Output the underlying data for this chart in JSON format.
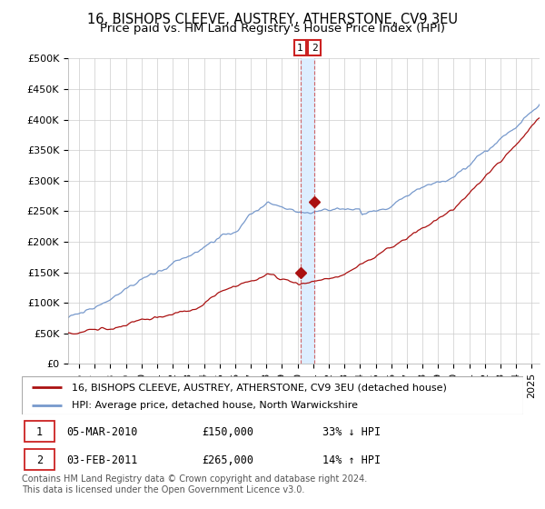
{
  "title": "16, BISHOPS CLEEVE, AUSTREY, ATHERSTONE, CV9 3EU",
  "subtitle": "Price paid vs. HM Land Registry's House Price Index (HPI)",
  "ylabel_ticks": [
    "£0",
    "£50K",
    "£100K",
    "£150K",
    "£200K",
    "£250K",
    "£300K",
    "£350K",
    "£400K",
    "£450K",
    "£500K"
  ],
  "ytick_vals": [
    0,
    50000,
    100000,
    150000,
    200000,
    250000,
    300000,
    350000,
    400000,
    450000,
    500000
  ],
  "ylim": [
    0,
    500000
  ],
  "xlim_start": 1995.3,
  "xlim_end": 2025.5,
  "hpi_color": "#7799cc",
  "price_color": "#aa1111",
  "marker1_x": 2010.17,
  "marker1_y": 150000,
  "marker2_x": 2011.08,
  "marker2_y": 265000,
  "vline1_x": 2010.17,
  "vline2_x": 2011.08,
  "legend_label1": "16, BISHOPS CLEEVE, AUSTREY, ATHERSTONE, CV9 3EU (detached house)",
  "legend_label2": "HPI: Average price, detached house, North Warwickshire",
  "table_row1_num": "1",
  "table_row1_date": "05-MAR-2010",
  "table_row1_price": "£150,000",
  "table_row1_hpi": "33% ↓ HPI",
  "table_row2_num": "2",
  "table_row2_date": "03-FEB-2011",
  "table_row2_price": "£265,000",
  "table_row2_hpi": "14% ↑ HPI",
  "footer": "Contains HM Land Registry data © Crown copyright and database right 2024.\nThis data is licensed under the Open Government Licence v3.0.",
  "title_fontsize": 10.5,
  "subtitle_fontsize": 9.5,
  "tick_fontsize": 8,
  "legend_fontsize": 8,
  "table_fontsize": 8.5,
  "footer_fontsize": 7,
  "grid_color": "#cccccc",
  "vband_color": "#ddeeff"
}
